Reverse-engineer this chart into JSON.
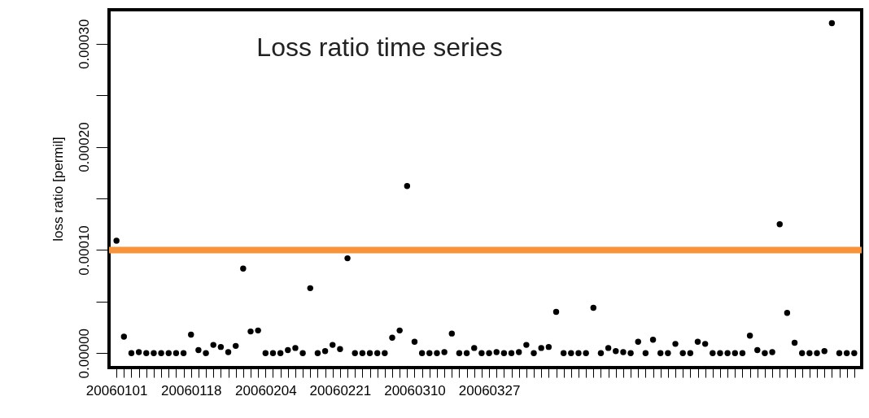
{
  "chart_data": {
    "type": "scatter",
    "title": "Loss ratio time series",
    "ylabel": "loss ratio [permil]",
    "categories": [
      "20060101",
      null,
      null,
      null,
      null,
      null,
      null,
      null,
      null,
      null,
      "20060118",
      null,
      null,
      null,
      null,
      null,
      null,
      null,
      null,
      null,
      "20060204",
      null,
      null,
      null,
      null,
      null,
      null,
      null,
      null,
      null,
      "20060221",
      null,
      null,
      null,
      null,
      null,
      null,
      null,
      null,
      null,
      "20060310",
      null,
      null,
      null,
      null,
      null,
      null,
      null,
      null,
      null,
      "20060327",
      null,
      null,
      null,
      null,
      null,
      null,
      null,
      null,
      null,
      null,
      null,
      null,
      null,
      null,
      null,
      null,
      null,
      null,
      null,
      null,
      null,
      null,
      null,
      null,
      null,
      null,
      null,
      null,
      null,
      null,
      null,
      null,
      null,
      null,
      null,
      null,
      null,
      null,
      null,
      null,
      null,
      null,
      null,
      null,
      null,
      null,
      null,
      null,
      null
    ],
    "series": [
      {
        "color": "#000000",
        "values": [
          0.000109,
          1.6e-05,
          0,
          1e-06,
          0,
          0,
          0,
          0,
          0,
          0,
          1.8e-05,
          3e-06,
          0,
          8e-06,
          6e-06,
          1e-06,
          7e-06,
          8.2e-05,
          2.1e-05,
          2.2e-05,
          0,
          0,
          0,
          3e-06,
          5e-06,
          0,
          6.3e-05,
          0,
          2e-06,
          8e-06,
          4e-06,
          9.2e-05,
          0,
          0,
          0,
          0,
          0,
          1.5e-05,
          2.2e-05,
          0.000162,
          1.1e-05,
          0,
          0,
          0,
          1e-06,
          1.9e-05,
          0,
          0,
          5e-06,
          0,
          0,
          1e-06,
          0,
          0,
          1e-06,
          8e-06,
          0,
          5e-06,
          6e-06,
          4e-05,
          0,
          0,
          0,
          0,
          4.4e-05,
          0,
          5e-06,
          2e-06,
          1e-06,
          0,
          1.1e-05,
          0,
          1.3e-05,
          0,
          0,
          9e-06,
          0,
          0,
          1.1e-05,
          9e-06,
          0,
          0,
          0,
          0,
          0,
          1.7e-05,
          3e-06,
          0,
          1e-06,
          0.000125,
          3.9e-05,
          1e-05,
          0,
          0,
          0,
          2e-06,
          0.00032,
          0,
          0,
          0
        ]
      }
    ],
    "ylim": [
      -1.4e-05,
      0.000333
    ],
    "yticks": [
      {
        "value": 0,
        "label": "0.00000"
      },
      {
        "value": 5e-05,
        "label": null
      },
      {
        "value": 0.0001,
        "label": "0.00010"
      },
      {
        "value": 0.00015,
        "label": null
      },
      {
        "value": 0.0002,
        "label": "0.00020"
      },
      {
        "value": 0.00025,
        "label": null
      },
      {
        "value": 0.0003,
        "label": "0.00030"
      }
    ],
    "ref_lines": [
      {
        "axis": "y",
        "value": 0.0001,
        "color": "#f7943a"
      }
    ],
    "marker": "circle",
    "grid": false,
    "legend": false
  }
}
